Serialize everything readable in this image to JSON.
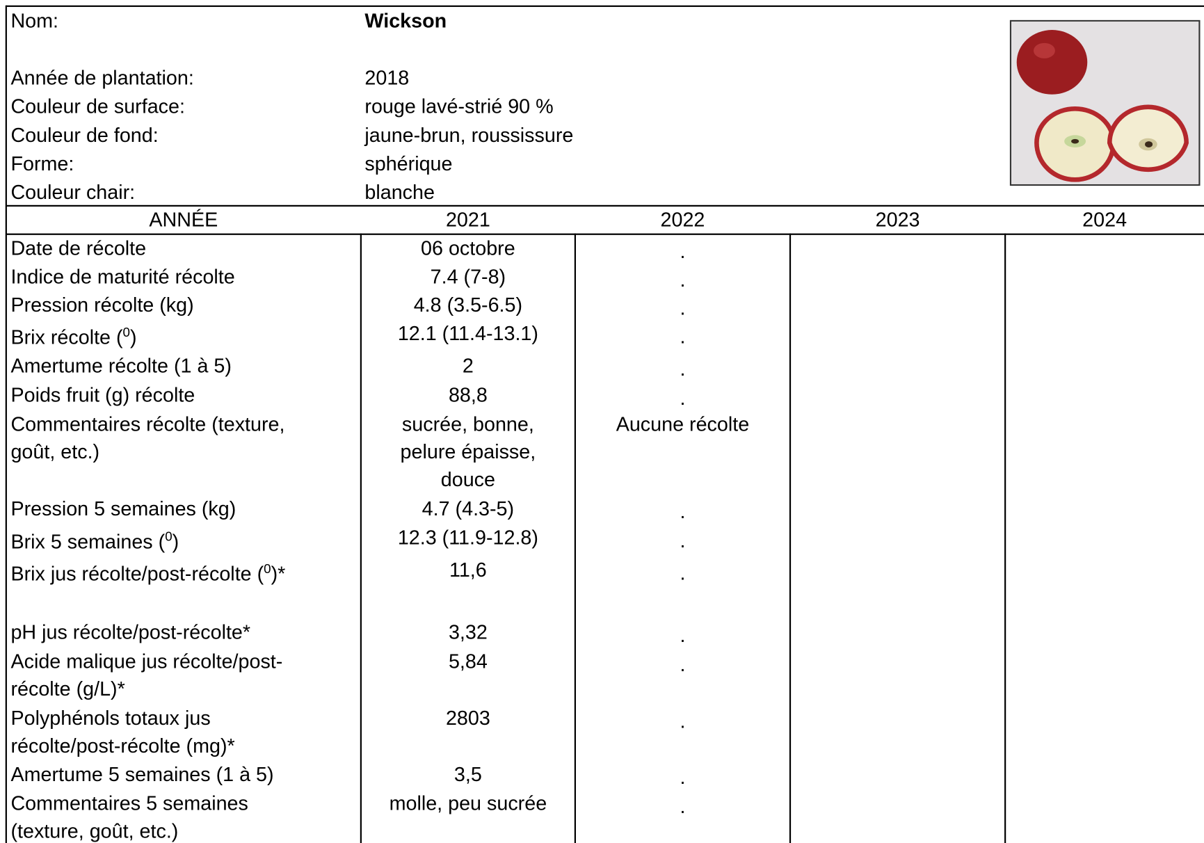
{
  "header": {
    "name_label": "Nom:",
    "name": "Wickson",
    "fields": [
      {
        "label": "Année de plantation:",
        "value": "2018"
      },
      {
        "label": "Couleur de surface:",
        "value": "rouge lavé-strié 90 %"
      },
      {
        "label": "Couleur de fond:",
        "value": "jaune-brun, roussissure"
      },
      {
        "label": "Forme:",
        "value": "sphérique"
      },
      {
        "label": "Couleur chair:",
        "value": "blanche"
      }
    ]
  },
  "table": {
    "columns": [
      "ANNÉE",
      "2021",
      "2022",
      "2023",
      "2024"
    ],
    "rows": [
      {
        "label": [
          "Date de récolte"
        ],
        "cells": [
          "06 octobre",
          "."
        ]
      },
      {
        "label": [
          "Indice de maturité récolte"
        ],
        "cells": [
          "7.4 (7-8)",
          "."
        ]
      },
      {
        "label": [
          "Pression récolte (kg)"
        ],
        "cells": [
          "4.8 (3.5-6.5)",
          "."
        ]
      },
      {
        "label": [
          {
            "text": "Brix récolte (",
            "sup": "0",
            "after": ")"
          }
        ],
        "cells": [
          "12.1 (11.4-13.1)",
          "."
        ]
      },
      {
        "label": [
          "Amertume récolte (1 à 5)"
        ],
        "cells": [
          "2",
          "."
        ]
      },
      {
        "label": [
          "Poids fruit (g) récolte"
        ],
        "cells": [
          "88,8",
          "."
        ]
      },
      {
        "label": [
          "Commentaires récolte (texture,",
          "goût, etc.)"
        ],
        "cells": [
          [
            "sucrée, bonne,",
            "pelure épaisse,",
            "douce"
          ],
          "Aucune récolte"
        ]
      },
      {
        "label": [
          "Pression 5 semaines (kg)"
        ],
        "cells": [
          "4.7 (4.3-5)",
          "."
        ]
      },
      {
        "label": [
          {
            "text": "Brix 5 semaines (",
            "sup": "0",
            "after": ")"
          }
        ],
        "cells": [
          "12.3 (11.9-12.8)",
          "."
        ]
      },
      {
        "label": [
          {
            "text": "Brix jus récolte/post-récolte (",
            "sup": "0",
            "after": ")*"
          }
        ],
        "cells": [
          "11,6",
          "."
        ]
      },
      {
        "label": [
          "pH jus récolte/post-récolte*"
        ],
        "cells": [
          "3,32",
          "."
        ]
      },
      {
        "label": [
          "Acide malique jus récolte/post-",
          "récolte (g/L)*"
        ],
        "cells": [
          "5,84",
          "."
        ]
      },
      {
        "label": [
          "Polyphénols totaux jus",
          "récolte/post-récolte (mg)*"
        ],
        "cells": [
          "2803",
          "."
        ]
      },
      {
        "label": [
          "Amertume 5 semaines (1 à 5)"
        ],
        "cells": [
          "3,5",
          "."
        ]
      },
      {
        "label": [
          "Commentaires 5 semaines",
          "(texture, goût, etc.)"
        ],
        "cells": [
          "molle, peu sucrée",
          "."
        ]
      }
    ]
  }
}
